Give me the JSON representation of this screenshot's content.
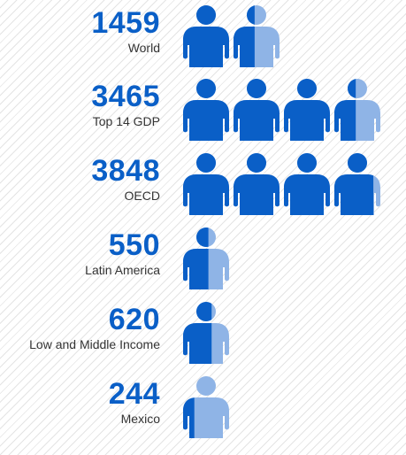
{
  "colors": {
    "primary": "#0a5fc7",
    "light": "#8fb4e6",
    "label": "#333333"
  },
  "chart_data": {
    "type": "pictogram",
    "icon": "person-icon",
    "people_per_icon": 1000,
    "categories": [
      "World",
      "Top 14 GDP",
      "OECD",
      "Latin America",
      "Low and Middle Income",
      "Mexico"
    ],
    "values": [
      1459,
      3465,
      3848,
      550,
      620,
      244
    ],
    "value_labels": [
      "1459",
      "3465",
      "3848",
      "550",
      "620",
      "244"
    ]
  }
}
